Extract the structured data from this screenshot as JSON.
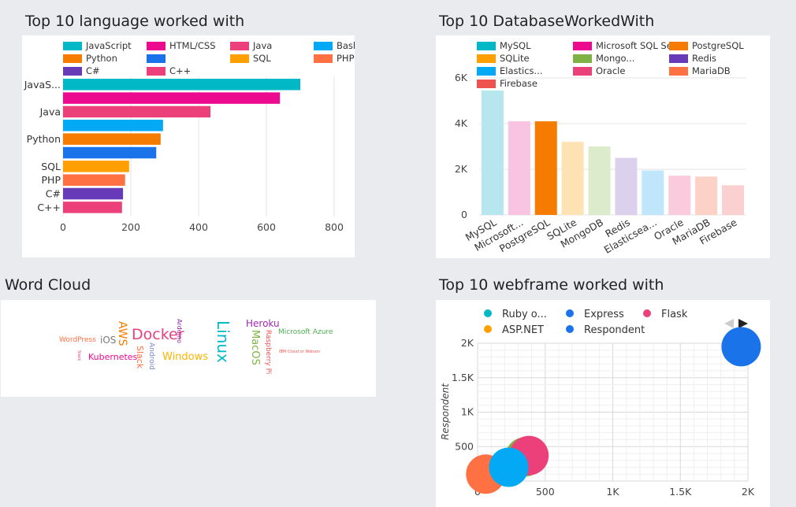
{
  "panels": {
    "lang_title": "Top 10 language worked with",
    "db_title": "Top 10 DatabaseWorkedWith",
    "wc_title": "Word Cloud",
    "web_title": "Top 10 webframe worked with"
  },
  "chart_data": [
    {
      "id": "languages",
      "type": "bar",
      "orientation": "horizontal",
      "title": "Top 10 language worked with",
      "legend": [
        {
          "label": "JavaScript",
          "color": "#00b8c6"
        },
        {
          "label": "HTML/CSS",
          "color": "#ec0a8e"
        },
        {
          "label": "Java",
          "color": "#ec407a"
        },
        {
          "label": "Bash/Shell/Power...",
          "color": "#03a9f4"
        },
        {
          "label": "Python",
          "color": "#f57c00"
        },
        {
          "label": "",
          "color": "#1a73e8"
        },
        {
          "label": "SQL",
          "color": "#ffa000"
        },
        {
          "label": "PHP",
          "color": "#ff7043"
        },
        {
          "label": "C#",
          "color": "#673ab7"
        },
        {
          "label": "C++",
          "color": "#ec407a"
        }
      ],
      "bars": [
        {
          "label": "JavaS...",
          "value": 700,
          "color": "#00b8c6"
        },
        {
          "label": "",
          "value": 640,
          "color": "#ec0a8e"
        },
        {
          "label": "Java",
          "value": 435,
          "color": "#ec407a"
        },
        {
          "label": "",
          "value": 295,
          "color": "#03a9f4"
        },
        {
          "label": "Python",
          "value": 288,
          "color": "#f57c00"
        },
        {
          "label": "",
          "value": 275,
          "color": "#1a73e8"
        },
        {
          "label": "SQL",
          "value": 195,
          "color": "#ffa000"
        },
        {
          "label": "PHP",
          "value": 183,
          "color": "#ff7043"
        },
        {
          "label": "C#",
          "value": 177,
          "color": "#673ab7"
        },
        {
          "label": "C++",
          "value": 174,
          "color": "#ec407a"
        }
      ],
      "xlim": [
        0,
        800
      ],
      "xticks": [
        "0",
        "200",
        "400",
        "600",
        "800"
      ],
      "grid": true
    },
    {
      "id": "databases",
      "type": "bar",
      "title": "Top 10 DatabaseWorkedWith",
      "legend": [
        {
          "label": "MySQL",
          "color": "#00b8c6"
        },
        {
          "label": "Microsoft SQL Ser...",
          "color": "#ec0a8e"
        },
        {
          "label": "PostgreSQL",
          "color": "#f57c00"
        },
        {
          "label": "SQLite",
          "color": "#ffa000"
        },
        {
          "label": "Mongo...",
          "color": "#7cb342"
        },
        {
          "label": "Redis",
          "color": "#673ab7"
        },
        {
          "label": "Elastics...",
          "color": "#03a9f4"
        },
        {
          "label": "Oracle",
          "color": "#ec407a"
        },
        {
          "label": "MariaDB",
          "color": "#ff7043"
        },
        {
          "label": "Firebase",
          "color": "#ef5350"
        }
      ],
      "categories": [
        "MySQL",
        "Microsoft...",
        "PostgreSQL",
        "SQLite",
        "MongoDB",
        "Redis",
        "Elasticsea...",
        "Oracle",
        "MariaDB",
        "Firebase"
      ],
      "values": [
        5450,
        4100,
        4100,
        3200,
        3000,
        2500,
        1950,
        1720,
        1680,
        1300
      ],
      "colors": [
        "#b7e7ee",
        "#f9c3e2",
        "#f57c00",
        "#fde3b3",
        "#dcebcb",
        "#dbd1ec",
        "#bfe6fb",
        "#f9cbdc",
        "#fcd2c6",
        "#fad0d0"
      ],
      "ylim": [
        0,
        6000
      ],
      "yticks": [
        {
          "v": 0,
          "t": "0"
        },
        {
          "v": 2000,
          "t": "2K"
        },
        {
          "v": 4000,
          "t": "4K"
        },
        {
          "v": 6000,
          "t": "6K"
        }
      ],
      "grid": true
    },
    {
      "id": "webframes",
      "type": "scatter",
      "title": "Top 10 webframe worked with",
      "legend": [
        {
          "label": "Ruby o...",
          "color": "#00b8c6"
        },
        {
          "label": "Express",
          "color": "#1a73e8"
        },
        {
          "label": "Flask",
          "color": "#ec407a"
        },
        {
          "label": "ASP.NET",
          "color": "#ffa000"
        },
        {
          "label": "Respondent",
          "color": "#1a73e8"
        }
      ],
      "ylabel": "Respondent",
      "xlim": [
        0,
        2000
      ],
      "ylim": [
        0,
        2000
      ],
      "xticks": [
        {
          "v": 0,
          "t": "0"
        },
        {
          "v": 500,
          "t": "500"
        },
        {
          "v": 1000,
          "t": "1K"
        },
        {
          "v": 1500,
          "t": "1.5K"
        },
        {
          "v": 2000,
          "t": "2K"
        }
      ],
      "yticks": [
        {
          "v": 500,
          "t": "500"
        },
        {
          "v": 1000,
          "t": "1K"
        },
        {
          "v": 1500,
          "t": "1.5K"
        },
        {
          "v": 2000,
          "t": "2K"
        }
      ],
      "points": [
        {
          "x": 60,
          "y": 100,
          "color": "#ff7043"
        },
        {
          "x": 350,
          "y": 350,
          "color": "#7cb342"
        },
        {
          "x": 380,
          "y": 370,
          "color": "#ec407a"
        },
        {
          "x": 230,
          "y": 200,
          "color": "#03a9f4"
        },
        {
          "x": 1950,
          "y": 1950,
          "color": "#1a73e8"
        }
      ],
      "grid": true
    }
  ],
  "word_cloud": [
    {
      "text": "WordPress",
      "color": "#ff7043",
      "size": 9,
      "x": 74,
      "y": 47,
      "rot": 0
    },
    {
      "text": "iOS",
      "color": "#777777",
      "size": 12,
      "x": 126,
      "y": 45,
      "rot": 0
    },
    {
      "text": "AWS",
      "color": "#f57c00",
      "size": 14,
      "x": 147,
      "y": 27,
      "rot": 90
    },
    {
      "text": "Docker",
      "color": "#ec407a",
      "size": 19,
      "x": 166,
      "y": 35,
      "rot": 0
    },
    {
      "text": "Arduino",
      "color": "#8e24aa",
      "size": 8,
      "x": 222,
      "y": 24,
      "rot": 90
    },
    {
      "text": "Android",
      "color": "#7986cb",
      "size": 9,
      "x": 186,
      "y": 54,
      "rot": 90
    },
    {
      "text": "Linux",
      "color": "#00b8c6",
      "size": 20,
      "x": 272,
      "y": 26,
      "rot": 90
    },
    {
      "text": "Heroku",
      "color": "#9c27b0",
      "size": 12,
      "x": 311,
      "y": 24,
      "rot": 0
    },
    {
      "text": "MacOS",
      "color": "#7cb342",
      "size": 13,
      "x": 316,
      "y": 38,
      "rot": 90
    },
    {
      "text": "Raspberry Pi",
      "color": "#ef5350",
      "size": 9,
      "x": 334,
      "y": 38,
      "rot": 90
    },
    {
      "text": "Microsoft Azure",
      "color": "#4caf50",
      "size": 9,
      "x": 352,
      "y": 37,
      "rot": 0
    },
    {
      "text": "IBM Cloud or Watson",
      "color": "#ef5350",
      "size": 5,
      "x": 353,
      "y": 64,
      "rot": 0
    },
    {
      "text": "Kubernetes",
      "color": "#ec0a8e",
      "size": 11,
      "x": 111,
      "y": 67,
      "rot": 0
    },
    {
      "text": "Slack",
      "color": "#ff7043",
      "size": 11,
      "x": 171,
      "y": 58,
      "rot": 90
    },
    {
      "text": "Windows",
      "color": "#ffb300",
      "size": 13,
      "x": 205,
      "y": 66,
      "rot": 0
    },
    {
      "text": "Slack",
      "color": "#ec407a",
      "size": 5,
      "x": 96,
      "y": 64,
      "rot": 90
    }
  ]
}
